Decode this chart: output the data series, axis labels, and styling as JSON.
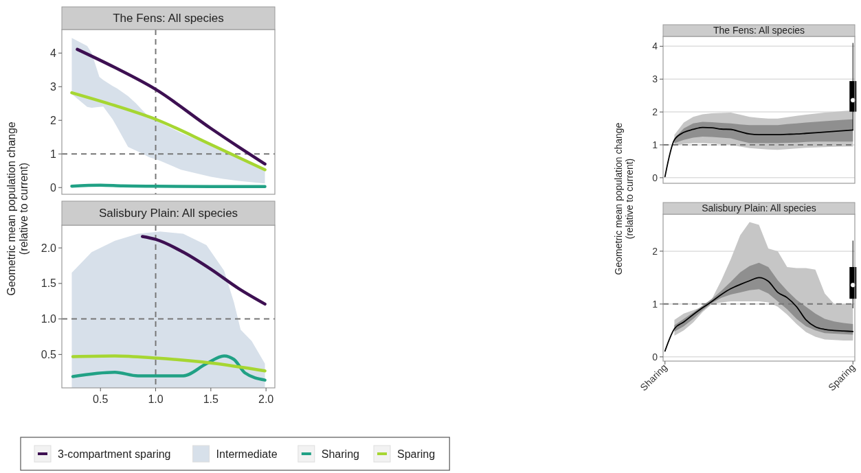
{
  "chart_data": [
    {
      "type": "line",
      "title": "The Fens: All species",
      "xlim": [
        0.15,
        2.08
      ],
      "ylim": [
        -0.2,
        4.7
      ],
      "yticks": [
        0,
        1,
        2,
        3,
        4
      ],
      "tick_labels": "y",
      "grid": false,
      "ref_lines": [
        {
          "axis": "y",
          "value": 1,
          "color": "#777777",
          "line_style": "dashed"
        },
        {
          "axis": "x",
          "value": 1,
          "color": "#777777",
          "line_style": "dashed"
        }
      ],
      "series": [
        {
          "type": "area",
          "color": "#d7e0ea",
          "x": [
            0.24,
            0.38,
            0.42,
            0.49,
            0.525,
            0.61,
            0.65,
            0.75,
            0.82,
            0.88,
            0.94,
            1.03,
            1.23,
            1.5,
            1.61,
            1.75,
            1.99
          ],
          "upper": [
            4.45,
            4.21,
            4.0,
            3.29,
            3.2,
            3.02,
            2.95,
            2.72,
            2.51,
            2.3,
            2.1,
            1.95,
            1.62,
            1.26,
            1.1,
            0.9,
            0.55
          ],
          "lower": [
            2.78,
            2.4,
            2.37,
            2.4,
            2.41,
            2.03,
            1.8,
            1.21,
            1.1,
            1.01,
            0.9,
            0.81,
            0.53,
            0.32,
            0.26,
            0.2,
            0.12
          ],
          "values": [
            null,
            null,
            null,
            null,
            null,
            null,
            null,
            null,
            null,
            null,
            null,
            null,
            null,
            null,
            null,
            null,
            null
          ]
        },
        {
          "color": "#21a185",
          "x": [
            0.24,
            0.5,
            0.7,
            1.0,
            1.5,
            1.99
          ],
          "values": [
            0.04,
            0.07,
            0.05,
            0.04,
            0.03,
            0.03
          ]
        },
        {
          "color": "#a6d632",
          "x": [
            0.24,
            0.63,
            1.0,
            1.5,
            1.99
          ],
          "values": [
            2.82,
            2.44,
            2.03,
            1.28,
            0.53
          ]
        },
        {
          "color": "#3d1052",
          "x": [
            0.29,
            0.63,
            1.0,
            1.5,
            1.75,
            1.99
          ],
          "values": [
            4.11,
            3.57,
            2.92,
            1.76,
            1.21,
            0.7
          ]
        }
      ]
    },
    {
      "type": "line",
      "title": "Salisbury Plain: All species",
      "ylabel": "Geometric mean population change\n(relative to current)",
      "xlim": [
        0.15,
        2.08
      ],
      "ylim": [
        0.03,
        2.32
      ],
      "xticks": [
        0.5,
        {
          "value": 1,
          "label": "1.0"
        },
        1.5,
        {
          "value": 2,
          "label": "2.0"
        }
      ],
      "yticks": [
        0.5,
        {
          "value": 1,
          "label": "1.0"
        },
        1.5,
        {
          "value": 2,
          "label": "2.0"
        }
      ],
      "grid": false,
      "legend": "bottom",
      "ref_lines": [
        {
          "axis": "y",
          "value": 1,
          "color": "#777777",
          "line_style": "dashed"
        },
        {
          "axis": "x",
          "value": 1,
          "color": "#777777",
          "line_style": "dashed"
        }
      ],
      "series": [
        {
          "name": "3-compartment sparing",
          "color": "#3d1052",
          "x": [
            0.88,
            1.0,
            1.25,
            1.5,
            1.75,
            1.99
          ],
          "values": [
            2.16,
            2.12,
            1.94,
            1.7,
            1.43,
            1.21
          ]
        },
        {
          "name": "Intermediate",
          "type": "area",
          "color": "#d7e0ea",
          "x": [
            0.24,
            0.42,
            0.63,
            0.84,
            1.04,
            1.25,
            1.46,
            1.62,
            1.71,
            1.77,
            1.87,
            1.99
          ],
          "upper": [
            1.65,
            1.94,
            2.1,
            2.2,
            2.23,
            2.2,
            2.04,
            1.68,
            1.23,
            0.85,
            0.69,
            0.37
          ],
          "lower": [
            0.03,
            0.03,
            0.03,
            0.03,
            0.03,
            0.03,
            0.03,
            0.03,
            0.03,
            0.03,
            0.03,
            0.03
          ],
          "values": [
            null,
            null,
            null,
            null,
            null,
            null,
            null,
            null,
            null,
            null,
            null,
            null
          ]
        },
        {
          "name": "Sharing",
          "color": "#21a185",
          "x": [
            0.25,
            0.63,
            0.84,
            1.25,
            1.46,
            1.62,
            1.71,
            1.81,
            1.99
          ],
          "values": [
            0.19,
            0.25,
            0.2,
            0.2,
            0.37,
            0.48,
            0.43,
            0.24,
            0.14
          ]
        },
        {
          "name": "Sparing",
          "color": "#a6d632",
          "x": [
            0.25,
            0.63,
            1.0,
            1.5,
            1.99
          ],
          "values": [
            0.47,
            0.48,
            0.45,
            0.38,
            0.27
          ]
        }
      ]
    },
    {
      "type": "line",
      "title": "The Fens: All species",
      "categories": [
        null,
        null,
        null,
        null,
        null,
        null,
        null,
        null,
        null,
        null,
        null,
        null,
        null,
        null,
        null,
        null,
        null,
        null,
        null,
        null,
        null
      ],
      "ylim": [
        -0.17,
        4.3
      ],
      "yticks": [
        0,
        1,
        2,
        3,
        4
      ],
      "tick_labels": "y",
      "grid": "y",
      "ref_lines": [
        {
          "axis": "y",
          "value": 1,
          "color": "#777777",
          "line_style": "dashed"
        }
      ],
      "series": [
        {
          "type": "area",
          "color": "#c6c6c6",
          "lower": [
            null,
            0.97,
            1.03,
            1.05,
            1.05,
            1.04,
            1.02,
            1.0,
            0.95,
            0.9,
            0.88,
            0.86,
            0.85,
            0.87,
            0.89,
            0.91,
            0.92,
            0.93,
            0.94,
            0.95,
            0.95
          ],
          "upper": [
            null,
            1.3,
            1.68,
            1.85,
            1.93,
            1.96,
            1.97,
            1.98,
            1.92,
            1.85,
            1.82,
            1.8,
            1.8,
            1.84,
            1.88,
            1.92,
            1.95,
            1.98,
            2.0,
            2.03,
            2.05
          ],
          "values": [
            null,
            null,
            null,
            null,
            null,
            null,
            null,
            null,
            null,
            null,
            null,
            null,
            null,
            null,
            null,
            null,
            null,
            null,
            null,
            null,
            null
          ]
        },
        {
          "type": "area",
          "color": "#8f8f8f",
          "lower": [
            null,
            1.05,
            1.15,
            1.22,
            1.25,
            1.24,
            1.22,
            1.2,
            1.12,
            1.05,
            1.05,
            1.05,
            1.05,
            1.06,
            1.07,
            1.09,
            1.1,
            1.1,
            1.1,
            1.1,
            1.1
          ],
          "upper": [
            null,
            1.2,
            1.5,
            1.65,
            1.7,
            1.69,
            1.67,
            1.65,
            1.62,
            1.6,
            1.6,
            1.6,
            1.6,
            1.63,
            1.65,
            1.68,
            1.7,
            1.72,
            1.74,
            1.76,
            1.78
          ],
          "values": [
            null,
            null,
            null,
            null,
            null,
            null,
            null,
            null,
            null,
            null,
            null,
            null,
            null,
            null,
            null,
            null,
            null,
            null,
            null,
            null,
            null
          ]
        },
        {
          "color": "#000000",
          "values": [
            0.03,
            1.15,
            1.38,
            1.47,
            1.53,
            1.52,
            1.48,
            1.47,
            1.4,
            1.33,
            1.31,
            1.31,
            1.31,
            1.32,
            1.33,
            1.35,
            1.37,
            1.39,
            1.41,
            1.43,
            1.45
          ]
        },
        {
          "type": "box",
          "color": "#000000",
          "boxes": [
            null,
            null,
            null,
            null,
            null,
            null,
            null,
            null,
            null,
            null,
            null,
            null,
            null,
            null,
            null,
            null,
            null,
            null,
            null,
            null,
            {
              "low": 1.45,
              "q1": 2.01,
              "median": 2.36,
              "q3": 2.94,
              "high": 4.1
            }
          ]
        }
      ]
    },
    {
      "type": "line",
      "title": "Salisbury Plain: All species",
      "ylabel": "Geometric mean population change\n(relative to current)",
      "categories": [
        "Sharing",
        null,
        null,
        null,
        null,
        null,
        null,
        null,
        null,
        null,
        null,
        null,
        null,
        null,
        null,
        null,
        null,
        null,
        null,
        null,
        "Sparing"
      ],
      "ylim": [
        -0.08,
        2.7
      ],
      "yticks": [
        0,
        1,
        2
      ],
      "grid": "y",
      "ref_lines": [
        {
          "axis": "y",
          "value": 1,
          "color": "#777777",
          "line_style": "dashed"
        }
      ],
      "series": [
        {
          "type": "area",
          "color": "#c6c6c6",
          "lower": [
            null,
            0.4,
            0.5,
            0.65,
            0.85,
            1.0,
            1.03,
            1.05,
            1.05,
            1.05,
            1.05,
            1.03,
            0.95,
            0.8,
            0.62,
            0.47,
            0.38,
            0.33,
            0.32,
            0.31,
            0.31
          ],
          "upper": [
            null,
            0.7,
            0.82,
            0.88,
            0.95,
            1.1,
            1.45,
            1.85,
            2.3,
            2.55,
            2.5,
            2.05,
            2.0,
            1.7,
            1.68,
            1.68,
            1.65,
            1.2,
            1.0,
            1.0,
            1.0
          ],
          "values": [
            null,
            null,
            null,
            null,
            null,
            null,
            null,
            null,
            null,
            null,
            null,
            null,
            null,
            null,
            null,
            null,
            null,
            null,
            null,
            null,
            null
          ]
        },
        {
          "type": "area",
          "color": "#8f8f8f",
          "lower": [
            null,
            0.48,
            0.58,
            0.72,
            0.88,
            1.02,
            1.12,
            1.18,
            1.22,
            1.26,
            1.28,
            1.2,
            1.05,
            0.9,
            0.72,
            0.58,
            0.5,
            0.45,
            0.44,
            0.43,
            0.42
          ],
          "upper": [
            null,
            0.6,
            0.72,
            0.84,
            0.97,
            1.1,
            1.25,
            1.42,
            1.6,
            1.72,
            1.78,
            1.7,
            1.45,
            1.25,
            1.08,
            0.95,
            0.82,
            0.72,
            0.67,
            0.64,
            0.62
          ],
          "values": [
            null,
            null,
            null,
            null,
            null,
            null,
            null,
            null,
            null,
            null,
            null,
            null,
            null,
            null,
            null,
            null,
            null,
            null,
            null,
            null,
            null
          ]
        },
        {
          "color": "#000000",
          "values": [
            0.11,
            0.53,
            0.66,
            0.8,
            0.93,
            1.05,
            1.18,
            1.29,
            1.37,
            1.44,
            1.5,
            1.43,
            1.22,
            1.12,
            0.95,
            0.7,
            0.57,
            0.52,
            0.5,
            0.49,
            0.48
          ]
        },
        {
          "type": "box",
          "color": "#000000",
          "boxes": [
            null,
            null,
            null,
            null,
            null,
            null,
            null,
            null,
            null,
            null,
            null,
            null,
            null,
            null,
            null,
            null,
            null,
            null,
            null,
            null,
            {
              "low": 0.92,
              "q1": 1.1,
              "median": 1.36,
              "q3": 1.7,
              "high": 2.2
            }
          ]
        }
      ]
    }
  ]
}
